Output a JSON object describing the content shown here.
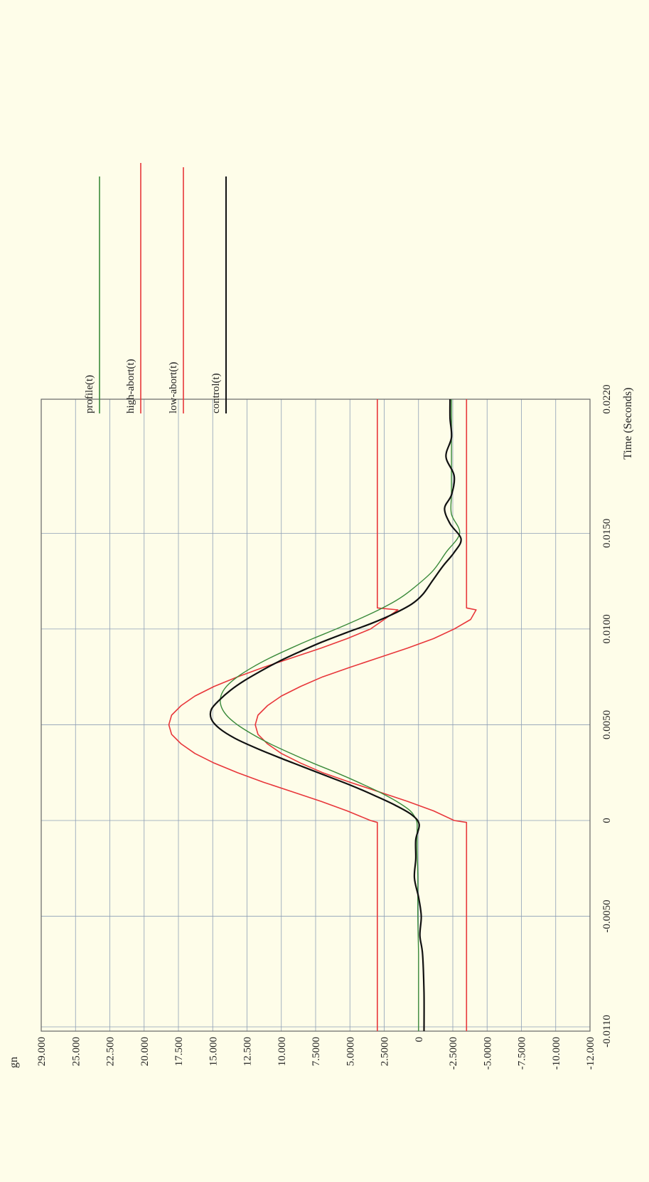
{
  "chart_data": {
    "type": "line",
    "xlabel": "Time (Seconds)",
    "ylabel": "gn",
    "x_ticks": [
      "-0.0110",
      "-0.0050",
      "0",
      "0.0050",
      "0.0100",
      "0.0150",
      "0.0220"
    ],
    "x_tick_values": [
      -0.011,
      -0.005,
      0,
      0.005,
      0.01,
      0.015,
      0.022
    ],
    "y_ticks": [
      "29.000",
      "25.000",
      "22.500",
      "20.000",
      "17.500",
      "15.000",
      "12.500",
      "10.000",
      "7.5000",
      "5.0000",
      "2.5000",
      "0",
      "-2.5000",
      "-5.0000",
      "-7.5000",
      "-10.000",
      "-12.000"
    ],
    "y_tick_values": [
      29,
      25,
      22.5,
      20,
      17.5,
      15,
      12.5,
      10,
      7.5,
      5,
      2.5,
      0,
      -2.5,
      -5,
      -7.5,
      -10,
      -12
    ],
    "xlim": [
      -0.011,
      0.022
    ],
    "ylim": [
      -12,
      29
    ],
    "grid": true,
    "legend_position": "top-right",
    "colors": {
      "profile": "#3a8a3a",
      "high_abort": "#e8363a",
      "low_abort": "#e8363a",
      "control": "#111111",
      "grid": "#8e9fb6",
      "frame": "#666666"
    },
    "series": [
      {
        "name": "profile(t)",
        "color": "#3a8a3a",
        "x": [
          -0.011,
          -0.009,
          -0.007,
          -0.005,
          -0.003,
          -0.0015,
          -0.0005,
          0,
          0.0005,
          0.001,
          0.0015,
          0.002,
          0.0025,
          0.003,
          0.0035,
          0.004,
          0.0045,
          0.005,
          0.0055,
          0.006,
          0.0065,
          0.007,
          0.0075,
          0.008,
          0.0085,
          0.009,
          0.0095,
          0.01,
          0.0105,
          0.011,
          0.0115,
          0.012,
          0.013,
          0.014,
          0.015,
          0.016,
          0.017,
          0.018,
          0.019,
          0.02,
          0.021,
          0.022
        ],
        "y": [
          0,
          0,
          0,
          0.05,
          0.05,
          0.1,
          0.1,
          0.15,
          0.6,
          1.6,
          2.9,
          4.4,
          6.0,
          7.7,
          9.3,
          10.8,
          12.1,
          13.2,
          14.0,
          14.4,
          14.4,
          14.0,
          13.2,
          12.1,
          10.8,
          9.3,
          7.7,
          6.0,
          4.4,
          2.9,
          1.6,
          0.6,
          -1.0,
          -2.0,
          -3.0,
          -2.4,
          -2.4,
          -2.4,
          -2.4,
          -2.4,
          -2.4,
          -2.4
        ]
      },
      {
        "name": "high-abort(t)",
        "color": "#e8363a",
        "x": [
          -0.011,
          -0.0001,
          0,
          0.0005,
          0.001,
          0.0015,
          0.002,
          0.0025,
          0.003,
          0.0035,
          0.004,
          0.0045,
          0.005,
          0.0055,
          0.006,
          0.0065,
          0.007,
          0.0075,
          0.008,
          0.0085,
          0.009,
          0.0095,
          0.01,
          0.0105,
          0.011,
          0.0111,
          0.022
        ],
        "y": [
          3.0,
          3.0,
          3.5,
          5.2,
          7.1,
          9.2,
          11.3,
          13.2,
          14.9,
          16.3,
          17.3,
          18.0,
          18.2,
          18.0,
          17.3,
          16.3,
          14.9,
          13.2,
          11.3,
          9.2,
          7.1,
          5.2,
          3.5,
          2.5,
          1.5,
          3.0,
          3.0
        ]
      },
      {
        "name": "low-abort(t)",
        "color": "#e8363a",
        "x": [
          -0.011,
          -0.0001,
          0,
          0.0005,
          0.001,
          0.0015,
          0.002,
          0.0025,
          0.003,
          0.0035,
          0.004,
          0.0045,
          0.005,
          0.0055,
          0.006,
          0.0065,
          0.007,
          0.0075,
          0.008,
          0.0085,
          0.009,
          0.0095,
          0.01,
          0.0105,
          0.011,
          0.0111,
          0.022
        ],
        "y": [
          -3.5,
          -3.5,
          -2.6,
          -1.1,
          0.8,
          2.9,
          5.0,
          7.0,
          8.6,
          10.0,
          11.0,
          11.7,
          11.9,
          11.7,
          11.0,
          10.0,
          8.6,
          7.0,
          5.0,
          2.9,
          0.8,
          -1.1,
          -2.6,
          -3.8,
          -4.2,
          -3.5,
          -3.5
        ]
      },
      {
        "name": "control(t)",
        "color": "#111111",
        "x": [
          -0.011,
          -0.009,
          -0.007,
          -0.006,
          -0.005,
          -0.004,
          -0.003,
          -0.002,
          -0.001,
          -0.0002,
          0.0003,
          0.0008,
          0.0013,
          0.0018,
          0.0023,
          0.0028,
          0.0033,
          0.0038,
          0.0043,
          0.0048,
          0.0053,
          0.0058,
          0.0063,
          0.0068,
          0.0073,
          0.0078,
          0.0083,
          0.0088,
          0.0093,
          0.0098,
          0.0103,
          0.0108,
          0.0113,
          0.0118,
          0.0125,
          0.0133,
          0.014,
          0.0147,
          0.0155,
          0.0163,
          0.017,
          0.018,
          0.019,
          0.02,
          0.021,
          0.022
        ],
        "y": [
          -0.4,
          -0.4,
          -0.3,
          -0.1,
          -0.2,
          0.0,
          0.3,
          0.2,
          0.2,
          -0.05,
          0.5,
          1.7,
          3.2,
          4.8,
          6.6,
          8.4,
          10.2,
          11.9,
          13.4,
          14.5,
          15.1,
          15.1,
          14.5,
          13.7,
          12.7,
          11.5,
          10.2,
          8.7,
          7.1,
          5.3,
          3.4,
          1.8,
          0.5,
          -0.3,
          -1.0,
          -1.8,
          -2.6,
          -3.1,
          -2.3,
          -1.9,
          -2.4,
          -2.6,
          -2.0,
          -2.4,
          -2.3,
          -2.3
        ]
      }
    ]
  }
}
